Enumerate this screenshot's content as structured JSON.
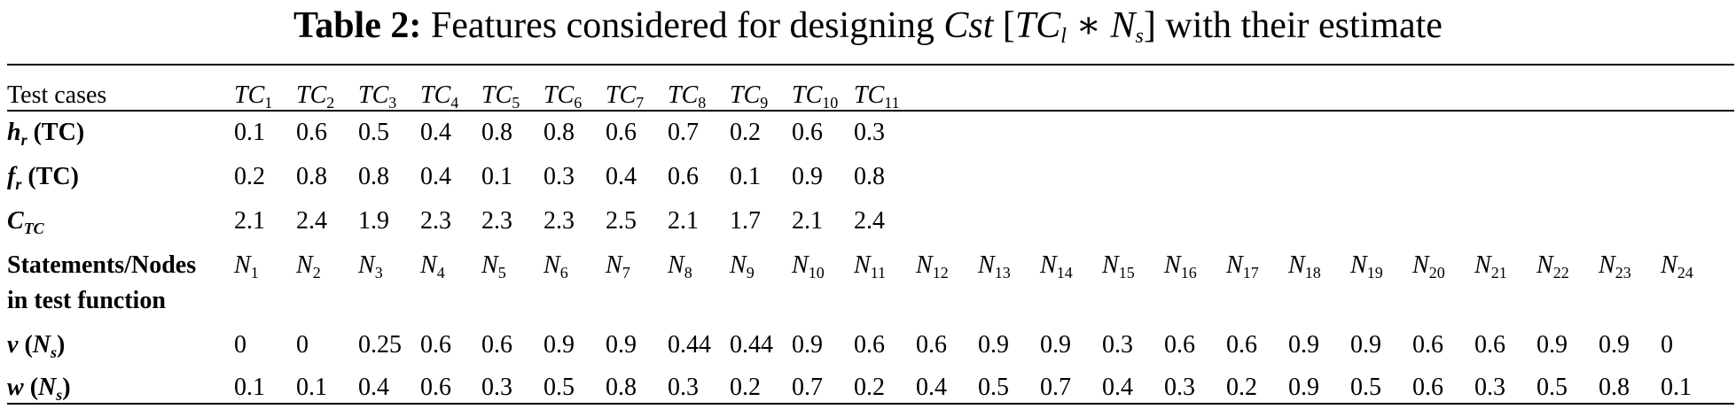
{
  "title": {
    "label": "Table 2:",
    "text_before": "Features considered for designing",
    "text_after": "with their estimate",
    "expr_cst": "Cst",
    "expr_tc": "TC",
    "expr_tc_sub": "l",
    "expr_op": "∗",
    "expr_n": "N",
    "expr_n_sub": "s"
  },
  "rows": {
    "test_cases": {
      "label": "Test cases",
      "tc_letters": "TC",
      "subscripts": [
        "1",
        "2",
        "3",
        "4",
        "5",
        "6",
        "7",
        "8",
        "9",
        "10",
        "11"
      ]
    },
    "hr": {
      "label_main": "h",
      "label_sub": "r",
      "label_arg": "(TC)",
      "values": [
        "0.1",
        "0.6",
        "0.5",
        "0.4",
        "0.8",
        "0.8",
        "0.6",
        "0.7",
        "0.2",
        "0.6",
        "0.3"
      ]
    },
    "fr": {
      "label_main": "f",
      "label_sub": "r",
      "label_arg": "(TC)",
      "values": [
        "0.2",
        "0.8",
        "0.8",
        "0.4",
        "0.1",
        "0.3",
        "0.4",
        "0.6",
        "0.1",
        "0.9",
        "0.8"
      ]
    },
    "ctc": {
      "label_main": "C",
      "label_sub": "TC",
      "values": [
        "2.1",
        "2.4",
        "1.9",
        "2.3",
        "2.3",
        "2.3",
        "2.5",
        "2.1",
        "1.7",
        "2.1",
        "2.4"
      ]
    },
    "nodes": {
      "label_line1": "Statements/Nodes",
      "label_line2": "in test function",
      "node_letter": "N",
      "subscripts": [
        "1",
        "2",
        "3",
        "4",
        "5",
        "6",
        "7",
        "8",
        "9",
        "10",
        "11",
        "12",
        "13",
        "14",
        "15",
        "16",
        "17",
        "18",
        "19",
        "20",
        "21",
        "22",
        "23",
        "24"
      ]
    },
    "v": {
      "label_main": "v",
      "label_arg_n": "N",
      "label_arg_sub": "s",
      "values": [
        "0",
        "0",
        "0.25",
        "0.6",
        "0.6",
        "0.9",
        "0.9",
        "0.44",
        "0.44",
        "0.9",
        "0.6",
        "0.6",
        "0.9",
        "0.9",
        "0.3",
        "0.6",
        "0.6",
        "0.9",
        "0.9",
        "0.6",
        "0.6",
        "0.9",
        "0.9",
        "0"
      ]
    },
    "w": {
      "label_main": "w",
      "label_arg_n": "N",
      "label_arg_sub": "s",
      "values": [
        "0.1",
        "0.1",
        "0.4",
        "0.6",
        "0.3",
        "0.5",
        "0.8",
        "0.3",
        "0.2",
        "0.7",
        "0.2",
        "0.4",
        "0.5",
        "0.7",
        "0.4",
        "0.3",
        "0.2",
        "0.9",
        "0.5",
        "0.6",
        "0.3",
        "0.5",
        "0.8",
        "0.1"
      ]
    }
  }
}
